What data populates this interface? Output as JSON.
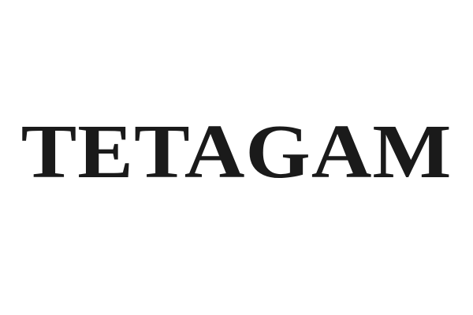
{
  "wordmark": {
    "text": "TETAGAM"
  },
  "colors": {
    "background": "#ffffff",
    "text": "#1a1a1a"
  }
}
